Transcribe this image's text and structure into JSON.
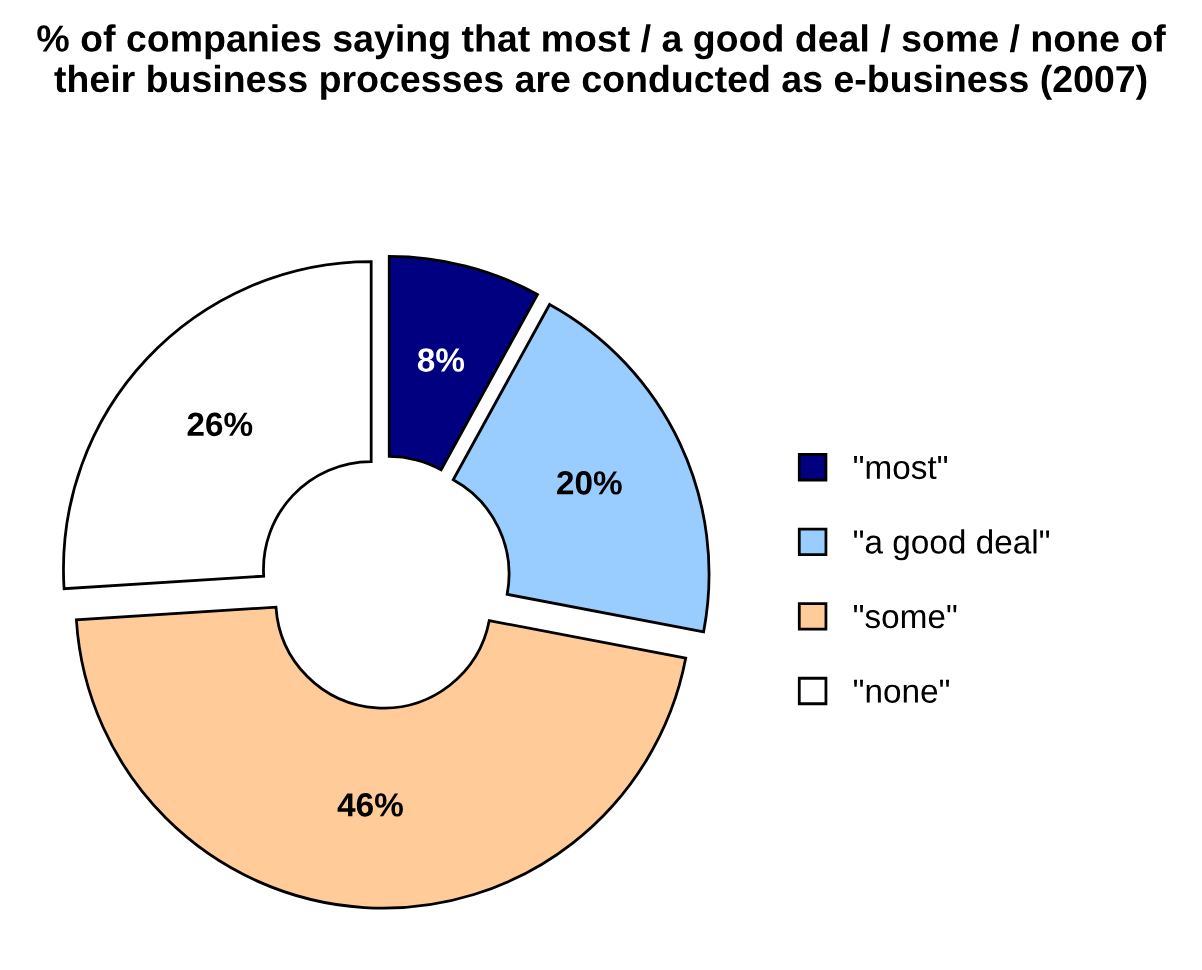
{
  "chart_data": {
    "type": "donut",
    "title": "% of companies saying that most / a good deal / some / none of their business processes are conducted as e-business (2007)",
    "categories": [
      "\"most\"",
      "\"a good deal\"",
      "\"some\"",
      "\"none\""
    ],
    "values": [
      8,
      20,
      46,
      26
    ],
    "colors": [
      "#000080",
      "#99ccff",
      "#ffcc99",
      "#ffffff"
    ],
    "value_labels": [
      "8%",
      "20%",
      "46%",
      "26%"
    ],
    "legend": "right"
  }
}
